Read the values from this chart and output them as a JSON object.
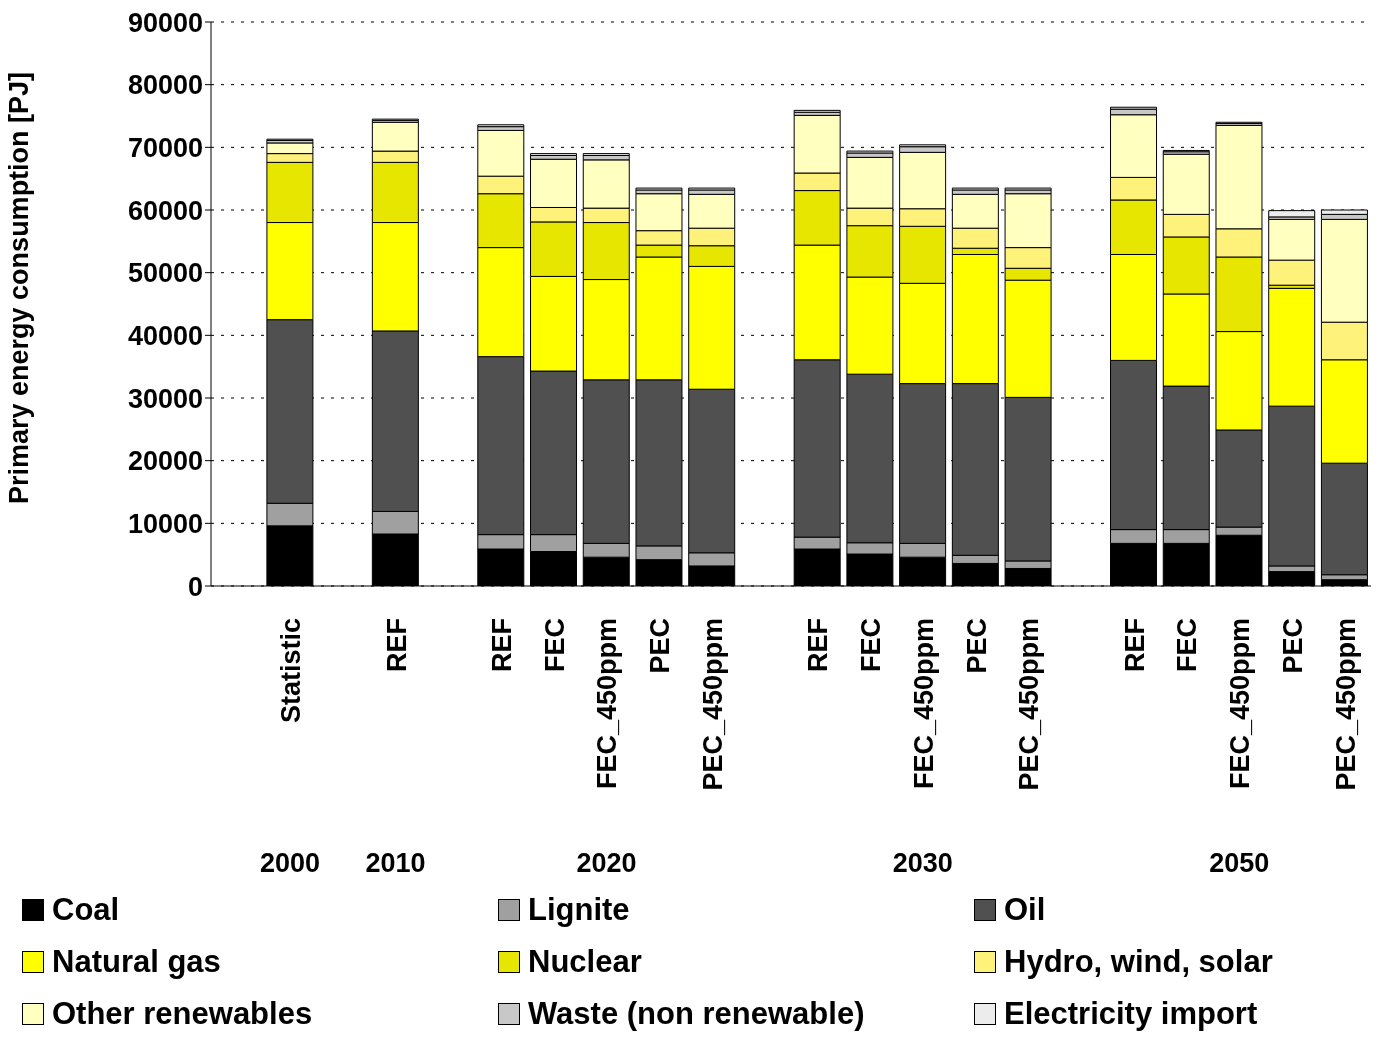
{
  "chart_data": {
    "type": "bar",
    "stacked": true,
    "ylabel": "Primary energy consumption [PJ]",
    "categories": [
      null,
      "Statistic",
      null,
      "REF",
      null,
      "REF",
      "FEC",
      "FEC_450ppm",
      "PEC",
      "PEC_450ppm",
      null,
      "REF",
      "FEC",
      "FEC_450ppm",
      "PEC",
      "PEC_450ppm",
      null,
      "REF",
      "FEC",
      "FEC_450ppm",
      "PEC",
      "PEC_450ppm"
    ],
    "annotations": [
      "2000",
      "2010",
      "2020",
      "2030",
      "2050"
    ],
    "ylim": [
      0,
      90000
    ],
    "yticks": [
      0,
      10000,
      20000,
      30000,
      40000,
      50000,
      60000,
      70000,
      80000,
      90000
    ],
    "grid": "y",
    "legend": "bottom",
    "series": [
      {
        "name": "Coal",
        "color": "#000000",
        "values": [
          null,
          9600,
          null,
          8300,
          null,
          5900,
          5500,
          4600,
          4200,
          3200,
          null,
          5900,
          5100,
          4600,
          3600,
          2800,
          null,
          6800,
          6800,
          8100,
          2300,
          1000
        ]
      },
      {
        "name": "Lignite",
        "color": "#a0a0a0",
        "values": [
          null,
          3600,
          null,
          3600,
          null,
          2300,
          2700,
          2200,
          2200,
          2100,
          null,
          1900,
          1800,
          2200,
          1300,
          1200,
          null,
          2200,
          2200,
          1300,
          900,
          800
        ]
      },
      {
        "name": "Oil",
        "color": "#505050",
        "values": [
          null,
          29300,
          null,
          28800,
          null,
          28400,
          26100,
          26100,
          26500,
          26100,
          null,
          28300,
          26900,
          25500,
          27400,
          26100,
          null,
          27000,
          22900,
          15500,
          25500,
          17800
        ]
      },
      {
        "name": "Natural gas",
        "color": "#ffff00",
        "values": [
          null,
          15500,
          null,
          17300,
          null,
          17400,
          15100,
          16000,
          19600,
          19600,
          null,
          18300,
          15500,
          16000,
          20600,
          18700,
          null,
          16900,
          14700,
          15700,
          18800,
          16500
        ]
      },
      {
        "name": "Nuclear",
        "color": "#e6e600",
        "values": [
          null,
          9600,
          null,
          9600,
          null,
          8600,
          8700,
          9100,
          1900,
          3300,
          null,
          8700,
          8200,
          9100,
          1000,
          1900,
          null,
          8700,
          9100,
          11900,
          500,
          0
        ]
      },
      {
        "name": "Hydro, wind, solar",
        "color": "#fff27a",
        "values": [
          null,
          1400,
          null,
          1800,
          null,
          2800,
          2300,
          2300,
          2300,
          2800,
          null,
          2800,
          2800,
          2800,
          3200,
          3300,
          null,
          3600,
          3600,
          4500,
          4000,
          6000
        ]
      },
      {
        "name": "Other renewables",
        "color": "#ffffc0",
        "values": [
          null,
          1700,
          null,
          4600,
          null,
          7300,
          7700,
          7700,
          5900,
          5400,
          null,
          9200,
          8100,
          9000,
          5400,
          8600,
          null,
          10000,
          9600,
          16500,
          6500,
          16400
        ]
      },
      {
        "name": "Waste (non renewable)",
        "color": "#c8c8c8",
        "values": [
          null,
          400,
          null,
          300,
          null,
          600,
          600,
          700,
          600,
          700,
          null,
          500,
          700,
          900,
          700,
          600,
          null,
          900,
          400,
          300,
          400,
          800
        ]
      },
      {
        "name": "Electricity import",
        "color": "#ececec",
        "values": [
          null,
          200,
          null,
          200,
          null,
          300,
          300,
          300,
          300,
          300,
          null,
          300,
          300,
          300,
          300,
          300,
          null,
          300,
          200,
          200,
          1000,
          700
        ]
      }
    ]
  }
}
